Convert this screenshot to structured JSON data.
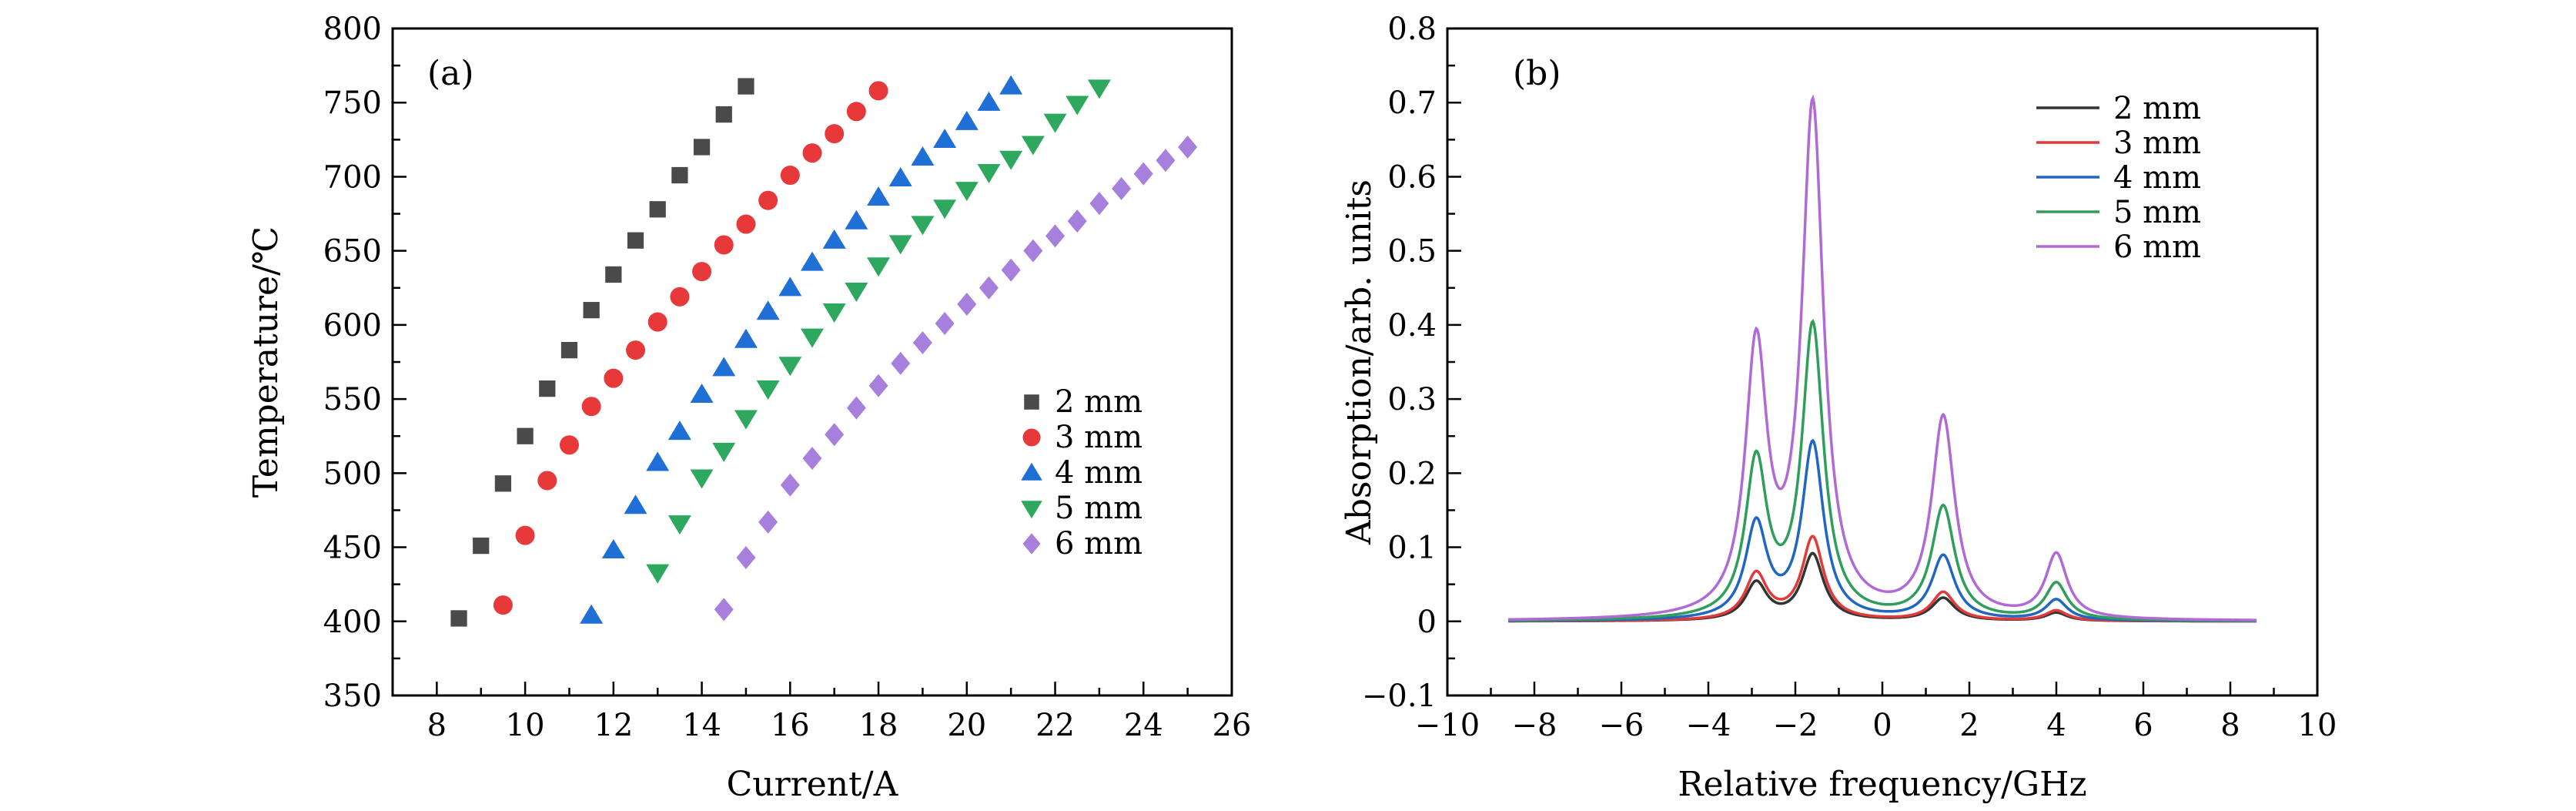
{
  "chart_data": [
    {
      "type": "scatter",
      "panel_label": "(a)",
      "xlabel": "Current/A",
      "ylabel": "Temperature/℃",
      "xlim": [
        7,
        26
      ],
      "ylim": [
        350,
        800
      ],
      "xticks": [
        8,
        10,
        12,
        14,
        16,
        18,
        20,
        22,
        24,
        26
      ],
      "yticks": [
        350,
        400,
        450,
        500,
        550,
        600,
        650,
        700,
        750,
        800
      ],
      "legend_position": "right-middle",
      "series": [
        {
          "name": "2 mm",
          "marker": "square",
          "color": "#4a4a4a",
          "x": [
            8.5,
            9.0,
            9.5,
            10.0,
            10.5,
            11.0,
            11.5,
            12.0,
            12.5,
            13.0,
            13.5,
            14.0,
            14.5,
            15.0
          ],
          "y": [
            402,
            451,
            493,
            525,
            557,
            583,
            610,
            634,
            657,
            678,
            701,
            720,
            742,
            761
          ]
        },
        {
          "name": "3 mm",
          "marker": "circle",
          "color": "#e8393a",
          "x": [
            9.5,
            10.0,
            10.5,
            11.0,
            11.5,
            12.0,
            12.5,
            13.0,
            13.5,
            14.0,
            14.5,
            15.0,
            15.5,
            16.0,
            16.5,
            17.0,
            17.5,
            18.0
          ],
          "y": [
            411,
            458,
            495,
            519,
            545,
            564,
            583,
            602,
            619,
            636,
            654,
            668,
            684,
            701,
            716,
            729,
            744,
            758
          ]
        },
        {
          "name": "4 mm",
          "marker": "triangle-up",
          "color": "#1f6fd6",
          "x": [
            11.5,
            12.0,
            12.5,
            13.0,
            13.5,
            14.0,
            14.5,
            15.0,
            15.5,
            16.0,
            16.5,
            17.0,
            17.5,
            18.0,
            18.5,
            19.0,
            19.5,
            20.0,
            20.5,
            21.0
          ],
          "y": [
            404,
            448,
            478,
            507,
            528,
            553,
            571,
            590,
            609,
            625,
            642,
            657,
            670,
            686,
            699,
            713,
            725,
            737,
            750,
            761
          ]
        },
        {
          "name": "5 mm",
          "marker": "triangle-down",
          "color": "#2ea85f",
          "x": [
            13.0,
            13.5,
            14.0,
            14.5,
            15.0,
            15.5,
            16.0,
            16.5,
            17.0,
            17.5,
            18.0,
            18.5,
            19.0,
            19.5,
            20.0,
            20.5,
            21.0,
            21.5,
            22.0,
            22.5,
            23.0
          ],
          "y": [
            433,
            466,
            497,
            515,
            537,
            557,
            573,
            592,
            609,
            623,
            640,
            655,
            668,
            679,
            691,
            703,
            712,
            722,
            737,
            749,
            760
          ]
        },
        {
          "name": "6 mm",
          "marker": "diamond",
          "color": "#a77fdc",
          "x": [
            14.5,
            15.0,
            15.5,
            16.0,
            16.5,
            17.0,
            17.5,
            18.0,
            18.5,
            19.0,
            19.5,
            20.0,
            20.5,
            21.0,
            21.5,
            22.0,
            22.5,
            23.0,
            23.5,
            24.0,
            24.5,
            25.0
          ],
          "y": [
            408,
            443,
            467,
            492,
            510,
            526,
            544,
            559,
            574,
            588,
            601,
            614,
            625,
            637,
            650,
            660,
            670,
            682,
            692,
            702,
            711,
            720
          ]
        }
      ]
    },
    {
      "type": "line",
      "panel_label": "(b)",
      "xlabel": "Relative frequency/GHz",
      "ylabel": "Absorption/arb. units",
      "xlim": [
        -10,
        10
      ],
      "ylim": [
        -0.1,
        0.8
      ],
      "xticks": [
        -10,
        -8,
        -6,
        -4,
        -2,
        0,
        2,
        4,
        6,
        8,
        10
      ],
      "yticks": [
        -0.1,
        0,
        0.1,
        0.2,
        0.3,
        0.4,
        0.5,
        0.6,
        0.7,
        0.8
      ],
      "xrange_plotted": [
        -8.6,
        8.6
      ],
      "peak_centers": [
        -2.9,
        -1.6,
        1.4,
        4.0
      ],
      "legend_position": "top-right",
      "series": [
        {
          "name": "2 mm",
          "color": "#333333",
          "peak_heights": [
            0.055,
            0.092,
            0.032,
            0.012
          ]
        },
        {
          "name": "3 mm",
          "color": "#e03a3a",
          "peak_heights": [
            0.068,
            0.115,
            0.04,
            0.015
          ]
        },
        {
          "name": "4 mm",
          "color": "#2166c2",
          "peak_heights": [
            0.14,
            0.244,
            0.09,
            0.03
          ]
        },
        {
          "name": "5 mm",
          "color": "#2e9e5a",
          "peak_heights": [
            0.23,
            0.405,
            0.157,
            0.053
          ]
        },
        {
          "name": "6 mm",
          "color": "#b06ad6",
          "peak_heights": [
            0.395,
            0.706,
            0.279,
            0.093
          ]
        }
      ]
    }
  ]
}
